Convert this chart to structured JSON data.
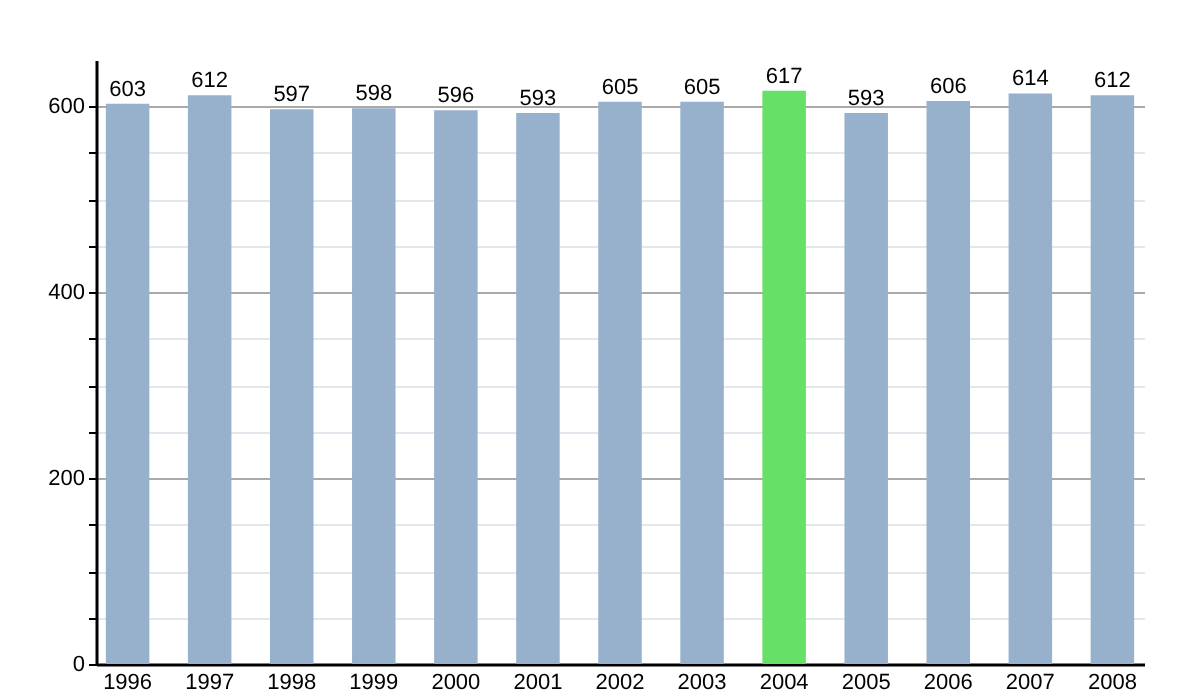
{
  "chart_data": {
    "type": "bar",
    "categories": [
      "1996",
      "1997",
      "1998",
      "1999",
      "2000",
      "2001",
      "2002",
      "2003",
      "2004",
      "2005",
      "2006",
      "2007",
      "2008"
    ],
    "values": [
      603,
      612,
      597,
      598,
      596,
      593,
      605,
      605,
      617,
      593,
      606,
      614,
      612
    ],
    "colors": [
      "#97b0cc",
      "#97b0cc",
      "#97b0cc",
      "#97b0cc",
      "#97b0cc",
      "#97b0cc",
      "#97b0cc",
      "#97b0cc",
      "#66e066",
      "#97b0cc",
      "#97b0cc",
      "#97b0cc",
      "#97b0cc"
    ],
    "ylim": [
      0,
      650
    ],
    "yticks": [
      0,
      {
        "value": 50,
        "label": null
      },
      {
        "value": 100,
        "label": null
      },
      {
        "value": 150,
        "label": null
      },
      200,
      {
        "value": 250,
        "label": null
      },
      {
        "value": 300,
        "label": null
      },
      {
        "value": 350,
        "label": null
      },
      400,
      {
        "value": 450,
        "label": null
      },
      {
        "value": 500,
        "label": null
      },
      {
        "value": 550,
        "label": null
      },
      600
    ],
    "grid": true,
    "data_labels": true
  }
}
